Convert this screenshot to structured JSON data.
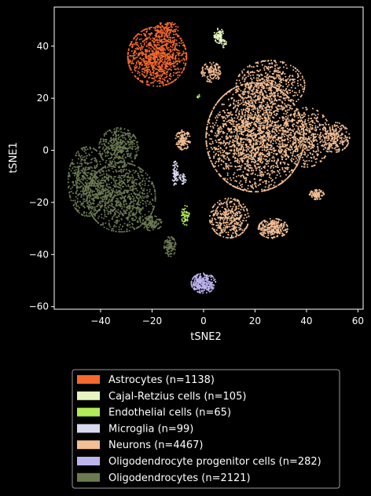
{
  "chart_data": {
    "type": "scatter",
    "title": "",
    "xlabel": "tSNE2",
    "ylabel": "tSNE1",
    "xlim": [
      -58,
      62
    ],
    "ylim": [
      -61,
      55
    ],
    "xticks": [
      -40,
      -20,
      0,
      20,
      40,
      60
    ],
    "yticks": [
      -60,
      -40,
      -20,
      0,
      20,
      40
    ],
    "xtick_labels": [
      "−40",
      "−20",
      "0",
      "20",
      "40",
      "60"
    ],
    "ytick_labels": [
      "−60",
      "−40",
      "−20",
      "0",
      "20",
      "40"
    ],
    "grid": false,
    "legend_position": "bottom-center",
    "series": [
      {
        "name": "Astrocytes (n=1138)",
        "color": "#f4692f",
        "n": 1138,
        "clusters": [
          {
            "cx": -18,
            "cy": 36,
            "sx": 6,
            "sy": 6,
            "w": 0.93
          },
          {
            "cx": -14,
            "cy": 47,
            "sx": 2.5,
            "sy": 1.2,
            "w": 0.07
          }
        ]
      },
      {
        "name": "Cajal-Retzius cells (n=105)",
        "color": "#e6f5c0",
        "n": 105,
        "clusters": [
          {
            "cx": 6,
            "cy": 44,
            "sx": 1,
            "sy": 1.5,
            "w": 0.85
          },
          {
            "cx": 8,
            "cy": 41,
            "sx": 0.5,
            "sy": 0.8,
            "w": 0.15
          }
        ]
      },
      {
        "name": "Endothelial cells (n=65)",
        "color": "#b3ea5a",
        "n": 65,
        "clusters": [
          {
            "cx": -7,
            "cy": -25,
            "sx": 0.8,
            "sy": 2,
            "w": 0.9
          },
          {
            "cx": -2,
            "cy": 21,
            "sx": 0.4,
            "sy": 0.4,
            "w": 0.1
          }
        ]
      },
      {
        "name": "Microglia (n=99)",
        "color": "#d8d8f0",
        "n": 99,
        "clusters": [
          {
            "cx": -11,
            "cy": -9,
            "sx": 0.6,
            "sy": 2.5,
            "w": 0.7
          },
          {
            "cx": -8,
            "cy": -11,
            "sx": 0.8,
            "sy": 1,
            "w": 0.3
          }
        ]
      },
      {
        "name": "Neurons (n=4467)",
        "color": "#f2bf95",
        "n": 4467,
        "clusters": [
          {
            "cx": 20,
            "cy": 5,
            "sx": 10,
            "sy": 11,
            "w": 0.5
          },
          {
            "cx": 26,
            "cy": 25,
            "sx": 7,
            "sy": 5,
            "w": 0.12
          },
          {
            "cx": 10,
            "cy": -26,
            "sx": 4,
            "sy": 4,
            "w": 0.09
          },
          {
            "cx": 27,
            "cy": -30,
            "sx": 3,
            "sy": 2,
            "w": 0.06
          },
          {
            "cx": 40,
            "cy": 5,
            "sx": 5,
            "sy": 6,
            "w": 0.1
          },
          {
            "cx": 51,
            "cy": 5,
            "sx": 3,
            "sy": 3,
            "w": 0.05
          },
          {
            "cx": -8,
            "cy": 4,
            "sx": 1.5,
            "sy": 2,
            "w": 0.03
          },
          {
            "cx": 44,
            "cy": -17,
            "sx": 1.5,
            "sy": 1,
            "w": 0.02
          },
          {
            "cx": 3,
            "cy": 30,
            "sx": 2,
            "sy": 2,
            "w": 0.03
          }
        ]
      },
      {
        "name": "Oligodendrocyte progenitor cells (n=282)",
        "color": "#bdb4ee",
        "n": 282,
        "clusters": [
          {
            "cx": 0,
            "cy": -51,
            "sx": 2.5,
            "sy": 2,
            "w": 1.0
          }
        ]
      },
      {
        "name": "Oligodendrocytes (n=2121)",
        "color": "#6c7a53",
        "n": 2121,
        "clusters": [
          {
            "cx": -32,
            "cy": -18,
            "sx": 7,
            "sy": 7,
            "w": 0.45
          },
          {
            "cx": -45,
            "cy": -12,
            "sx": 4,
            "sy": 7,
            "w": 0.25
          },
          {
            "cx": -33,
            "cy": 1,
            "sx": 4,
            "sy": 4,
            "w": 0.2
          },
          {
            "cx": -20,
            "cy": -28,
            "sx": 2,
            "sy": 1.5,
            "w": 0.05
          },
          {
            "cx": -13,
            "cy": -37,
            "sx": 1.2,
            "sy": 2,
            "w": 0.05
          }
        ]
      }
    ]
  }
}
